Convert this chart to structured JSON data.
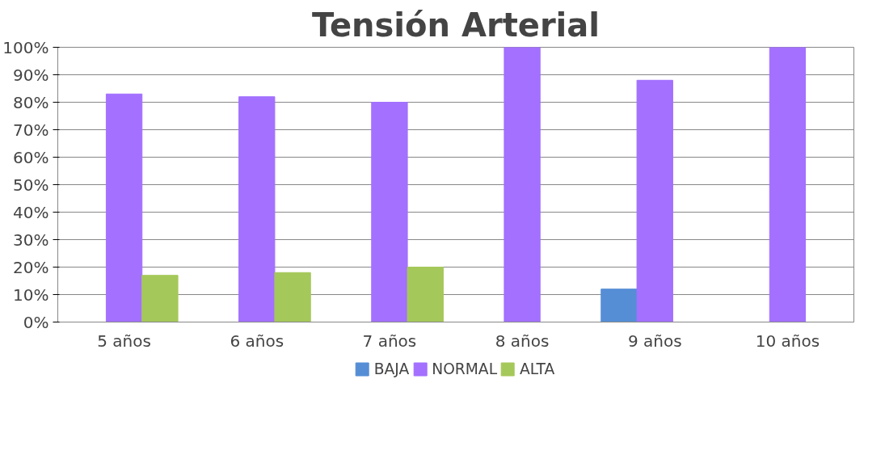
{
  "chart_data": {
    "type": "bar",
    "title": "Tensión Arterial",
    "categories": [
      "5 años",
      "6 años",
      "7 años",
      "8 años",
      "9 años",
      "10 años"
    ],
    "series": [
      {
        "name": "BAJA",
        "color": "#558ed5",
        "values": [
          0,
          0,
          0,
          0,
          12,
          0
        ]
      },
      {
        "name": "NORMAL",
        "color": "#a370ff",
        "values": [
          83,
          82,
          80,
          100,
          88,
          100
        ]
      },
      {
        "name": "ALTA",
        "color": "#a5c85a",
        "values": [
          17,
          18,
          20,
          0,
          0,
          0
        ]
      }
    ],
    "ylim": [
      0,
      100
    ],
    "yticks": [
      {
        "value": 0,
        "label": "0%"
      },
      {
        "value": 10,
        "label": "10%"
      },
      {
        "value": 20,
        "label": "20%"
      },
      {
        "value": 30,
        "label": "30%"
      },
      {
        "value": 40,
        "label": "40%"
      },
      {
        "value": 50,
        "label": "50%"
      },
      {
        "value": 60,
        "label": "60%"
      },
      {
        "value": 70,
        "label": "70%"
      },
      {
        "value": 80,
        "label": "80%"
      },
      {
        "value": 90,
        "label": "90%"
      },
      {
        "value": 100,
        "label": "100%"
      }
    ],
    "grid": "y",
    "legend": "bottom"
  }
}
